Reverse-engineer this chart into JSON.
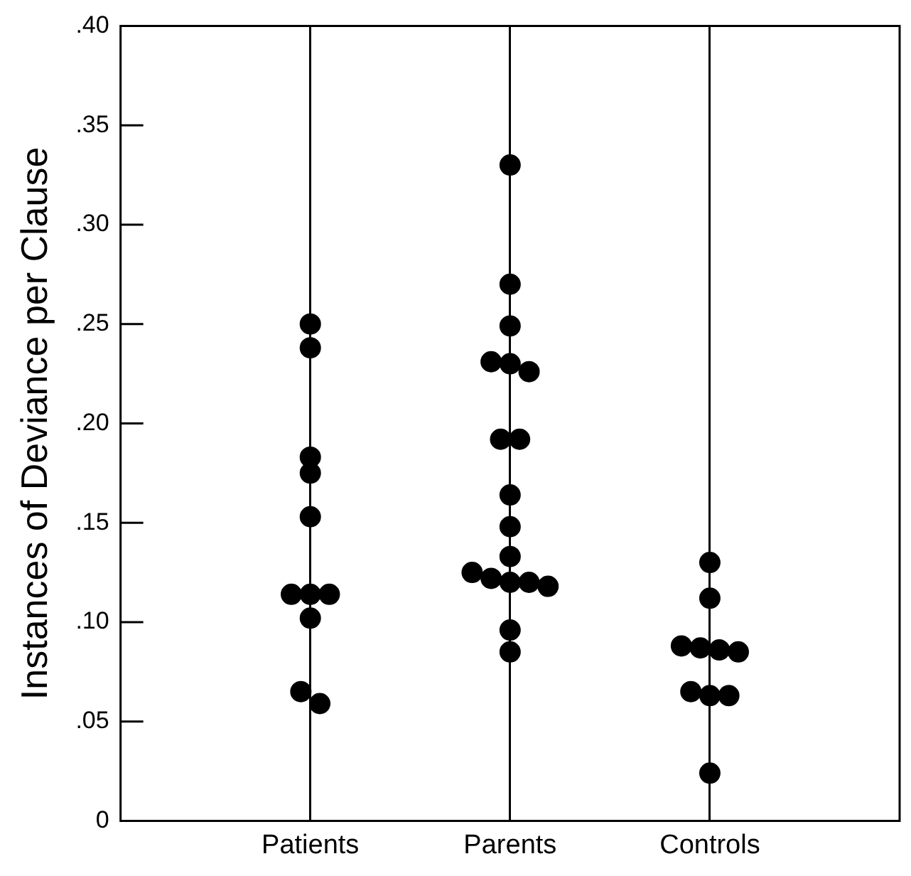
{
  "chart_data": {
    "type": "scatter",
    "ylabel": "Instances of Deviance per Clause",
    "categories": [
      "Patients",
      "Parents",
      "Controls"
    ],
    "series": [
      {
        "color": "#000000",
        "x": [
          "Patients",
          "Patients",
          "Patients",
          "Patients",
          "Patients",
          "Patients",
          "Patients",
          "Patients",
          "Patients",
          "Patients",
          "Patients"
        ],
        "values": [
          0.25,
          0.238,
          0.183,
          0.175,
          0.153,
          0.114,
          0.114,
          0.114,
          0.102,
          0.065,
          0.059
        ]
      },
      {
        "color": "#000000",
        "x": [
          "Parents",
          "Parents",
          "Parents",
          "Parents",
          "Parents",
          "Parents",
          "Parents",
          "Parents",
          "Parents",
          "Parents",
          "Parents",
          "Parents",
          "Parents",
          "Parents",
          "Parents",
          "Parents",
          "Parents",
          "Parents"
        ],
        "values": [
          0.33,
          0.27,
          0.249,
          0.231,
          0.23,
          0.226,
          0.192,
          0.192,
          0.164,
          0.148,
          0.133,
          0.125,
          0.122,
          0.12,
          0.12,
          0.118,
          0.096,
          0.085
        ]
      },
      {
        "color": "#000000",
        "x": [
          "Controls",
          "Controls",
          "Controls",
          "Controls",
          "Controls",
          "Controls",
          "Controls",
          "Controls",
          "Controls",
          "Controls"
        ],
        "values": [
          0.13,
          0.112,
          0.088,
          0.087,
          0.086,
          0.085,
          0.065,
          0.063,
          0.063,
          0.024
        ]
      }
    ],
    "ylim": [
      0,
      0.4
    ],
    "yticks": [
      0,
      {
        "value": 0.05,
        "label": ".05"
      },
      {
        "value": 0.1,
        "label": ".10"
      },
      {
        "value": 0.15,
        "label": ".15"
      },
      {
        "value": 0.2,
        "label": ".20"
      },
      {
        "value": 0.25,
        "label": ".25"
      },
      {
        "value": 0.3,
        "label": ".30"
      },
      {
        "value": 0.35,
        "label": ".35"
      },
      {
        "value": 0.4,
        "label": ".40"
      }
    ],
    "grid": "x",
    "marker": "circle",
    "legend": false
  }
}
